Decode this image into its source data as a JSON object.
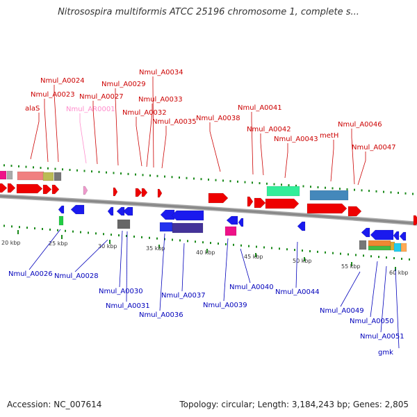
{
  "title": "Nitrosospira multiformis ATCC 25196 chromosome 1, complete s...",
  "footer": {
    "accession": "Accession: NC_007614",
    "summary": "Topology: circular; Length: 3,184,243 bp; Genes: 2,805"
  },
  "colors": {
    "forward_label": "#cc0000",
    "reverse_label": "#0000bb",
    "rna_label": "#ff8ccc",
    "forward_gene": "#ee0000",
    "reverse_gene": "#1a1aee",
    "backbone": "#888888",
    "tick": "#1a8a1a"
  },
  "kbp_labels": [
    "20 kbp",
    "25 kbp",
    "30 kbp",
    "35 kbp",
    "40 kbp",
    "45 kbp",
    "50 kbp",
    "55 kbp",
    "60 kbp"
  ],
  "forward_labels": [
    "alaS",
    "Nmul_A0023",
    "Nmul_A0024",
    "Nmul_AR0001",
    "Nmul_A0027",
    "Nmul_A0029",
    "Nmul_A0032",
    "Nmul_A0033",
    "Nmul_A0034",
    "Nmul_A0035",
    "Nmul_A0038",
    "Nmul_A0041",
    "Nmul_A0042",
    "Nmul_A0043",
    "metH",
    "Nmul_A0046",
    "Nmul_A0047"
  ],
  "reverse_labels": [
    "Nmul_A0026",
    "Nmul_A0028",
    "Nmul_A0030",
    "Nmul_A0031",
    "Nmul_A0036",
    "Nmul_A0037",
    "Nmul_A0039",
    "Nmul_A0040",
    "Nmul_A0044",
    "Nmul_A0049",
    "Nmul_A0050",
    "Nmul_A0051",
    "gmk"
  ]
}
